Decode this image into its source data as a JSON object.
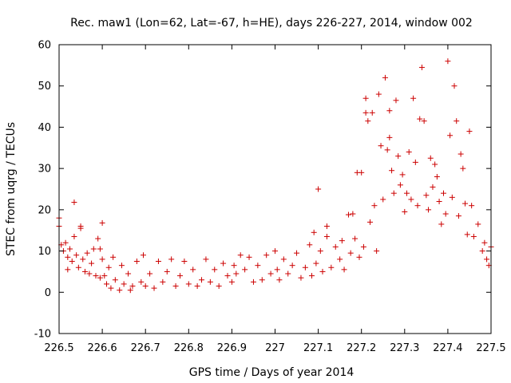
{
  "chart_data": {
    "type": "scatter",
    "title": "Rec. maw1 (Lon=62, Lat=-67, h=HE), days 226-227, 2014, window 002",
    "xlabel": "GPS time / Days of year 2014",
    "ylabel": "STEC from uqrg / TECUs",
    "xlim": [
      226.5,
      227.5
    ],
    "ylim": [
      -10,
      60
    ],
    "xticks": [
      226.5,
      226.6,
      226.7,
      226.8,
      226.9,
      227.0,
      227.1,
      227.2,
      227.3,
      227.4,
      227.5
    ],
    "xtick_labels": [
      "226.5",
      "226.6",
      "226.7",
      "226.8",
      "226.9",
      "227",
      "227.1",
      "227.2",
      "227.3",
      "227.4",
      "227.5"
    ],
    "yticks": [
      -10,
      0,
      10,
      20,
      30,
      40,
      50,
      60
    ],
    "ytick_labels": [
      "-10",
      "0",
      "10",
      "20",
      "30",
      "40",
      "50",
      "60"
    ],
    "grid": false,
    "marker": "+",
    "color": "#cc0000",
    "series": [
      {
        "points": [
          [
            226.5,
            18.0
          ],
          [
            226.5,
            16.0
          ],
          [
            226.505,
            11.5
          ],
          [
            226.51,
            10.0
          ],
          [
            226.515,
            12.0
          ],
          [
            226.52,
            8.5
          ],
          [
            226.52,
            5.5
          ],
          [
            226.525,
            10.5
          ],
          [
            226.53,
            7.5
          ],
          [
            226.535,
            21.8
          ],
          [
            226.535,
            13.5
          ],
          [
            226.54,
            9.0
          ],
          [
            226.545,
            6.0
          ],
          [
            226.55,
            16.0
          ],
          [
            226.55,
            15.5
          ],
          [
            226.555,
            8.0
          ],
          [
            226.56,
            5.0
          ],
          [
            226.565,
            9.5
          ],
          [
            226.57,
            4.5
          ],
          [
            226.575,
            7.0
          ],
          [
            226.58,
            10.5
          ],
          [
            226.585,
            4.0
          ],
          [
            226.59,
            13.0
          ],
          [
            226.595,
            10.5
          ],
          [
            226.595,
            3.5
          ],
          [
            226.6,
            16.8
          ],
          [
            226.6,
            8.0
          ],
          [
            226.605,
            4.0
          ],
          [
            226.61,
            2.0
          ],
          [
            226.615,
            6.0
          ],
          [
            226.62,
            1.0
          ],
          [
            226.625,
            8.5
          ],
          [
            226.63,
            3.0
          ],
          [
            226.64,
            0.5
          ],
          [
            226.645,
            6.5
          ],
          [
            226.65,
            2.0
          ],
          [
            226.66,
            4.5
          ],
          [
            226.665,
            0.5
          ],
          [
            226.67,
            1.5
          ],
          [
            226.68,
            7.5
          ],
          [
            226.69,
            2.5
          ],
          [
            226.695,
            9.0
          ],
          [
            226.7,
            1.5
          ],
          [
            226.71,
            4.5
          ],
          [
            226.72,
            1.0
          ],
          [
            226.73,
            7.5
          ],
          [
            226.74,
            2.5
          ],
          [
            226.75,
            5.0
          ],
          [
            226.76,
            8.0
          ],
          [
            226.77,
            1.5
          ],
          [
            226.78,
            4.0
          ],
          [
            226.79,
            7.5
          ],
          [
            226.8,
            2.0
          ],
          [
            226.81,
            5.5
          ],
          [
            226.82,
            1.5
          ],
          [
            226.83,
            3.0
          ],
          [
            226.84,
            8.0
          ],
          [
            226.85,
            2.5
          ],
          [
            226.86,
            5.5
          ],
          [
            226.87,
            1.5
          ],
          [
            226.88,
            7.0
          ],
          [
            226.89,
            4.0
          ],
          [
            226.9,
            2.5
          ],
          [
            226.905,
            6.5
          ],
          [
            226.91,
            4.5
          ],
          [
            226.92,
            9.0
          ],
          [
            226.93,
            5.5
          ],
          [
            226.94,
            8.5
          ],
          [
            226.95,
            2.5
          ],
          [
            226.96,
            6.5
          ],
          [
            226.97,
            3.0
          ],
          [
            226.98,
            9.0
          ],
          [
            226.99,
            4.5
          ],
          [
            227.0,
            10.0
          ],
          [
            227.005,
            5.5
          ],
          [
            227.01,
            3.0
          ],
          [
            227.02,
            8.0
          ],
          [
            227.03,
            4.5
          ],
          [
            227.04,
            6.5
          ],
          [
            227.05,
            9.5
          ],
          [
            227.06,
            3.5
          ],
          [
            227.07,
            6.0
          ],
          [
            227.08,
            11.5
          ],
          [
            227.085,
            4.0
          ],
          [
            227.09,
            14.5
          ],
          [
            227.095,
            7.0
          ],
          [
            227.1,
            25.0
          ],
          [
            227.105,
            10.0
          ],
          [
            227.11,
            5.0
          ],
          [
            227.12,
            16.0
          ],
          [
            227.12,
            13.5
          ],
          [
            227.13,
            6.0
          ],
          [
            227.14,
            11.0
          ],
          [
            227.15,
            8.0
          ],
          [
            227.155,
            12.5
          ],
          [
            227.16,
            5.5
          ],
          [
            227.17,
            18.8
          ],
          [
            227.175,
            9.5
          ],
          [
            227.18,
            19.0
          ],
          [
            227.185,
            13.0
          ],
          [
            227.19,
            29.0
          ],
          [
            227.195,
            8.5
          ],
          [
            227.2,
            29.0
          ],
          [
            227.205,
            11.0
          ],
          [
            227.21,
            47.0
          ],
          [
            227.21,
            43.5
          ],
          [
            227.215,
            41.5
          ],
          [
            227.22,
            17.0
          ],
          [
            227.225,
            43.5
          ],
          [
            227.23,
            21.0
          ],
          [
            227.235,
            10.0
          ],
          [
            227.24,
            48.0
          ],
          [
            227.245,
            35.5
          ],
          [
            227.25,
            22.5
          ],
          [
            227.255,
            52.0
          ],
          [
            227.26,
            34.5
          ],
          [
            227.265,
            44.0
          ],
          [
            227.265,
            37.5
          ],
          [
            227.27,
            29.5
          ],
          [
            227.275,
            24.0
          ],
          [
            227.28,
            46.5
          ],
          [
            227.285,
            33.0
          ],
          [
            227.29,
            26.0
          ],
          [
            227.295,
            28.5
          ],
          [
            227.3,
            19.5
          ],
          [
            227.305,
            24.0
          ],
          [
            227.31,
            34.0
          ],
          [
            227.315,
            22.5
          ],
          [
            227.32,
            47.0
          ],
          [
            227.325,
            31.5
          ],
          [
            227.33,
            21.0
          ],
          [
            227.335,
            42.0
          ],
          [
            227.34,
            54.5
          ],
          [
            227.345,
            41.5
          ],
          [
            227.35,
            23.5
          ],
          [
            227.355,
            20.0
          ],
          [
            227.36,
            32.5
          ],
          [
            227.365,
            25.5
          ],
          [
            227.37,
            31.0
          ],
          [
            227.375,
            28.0
          ],
          [
            227.38,
            22.0
          ],
          [
            227.385,
            16.5
          ],
          [
            227.39,
            24.0
          ],
          [
            227.395,
            19.0
          ],
          [
            227.4,
            56.0
          ],
          [
            227.405,
            38.0
          ],
          [
            227.41,
            23.0
          ],
          [
            227.415,
            50.0
          ],
          [
            227.42,
            41.5
          ],
          [
            227.425,
            18.5
          ],
          [
            227.43,
            33.5
          ],
          [
            227.435,
            30.0
          ],
          [
            227.44,
            21.5
          ],
          [
            227.445,
            14.0
          ],
          [
            227.45,
            39.0
          ],
          [
            227.455,
            21.0
          ],
          [
            227.46,
            13.5
          ],
          [
            227.47,
            16.5
          ],
          [
            227.48,
            10.0
          ],
          [
            227.485,
            12.0
          ],
          [
            227.49,
            8.0
          ],
          [
            227.495,
            6.5
          ],
          [
            227.5,
            11.0
          ]
        ]
      }
    ]
  }
}
